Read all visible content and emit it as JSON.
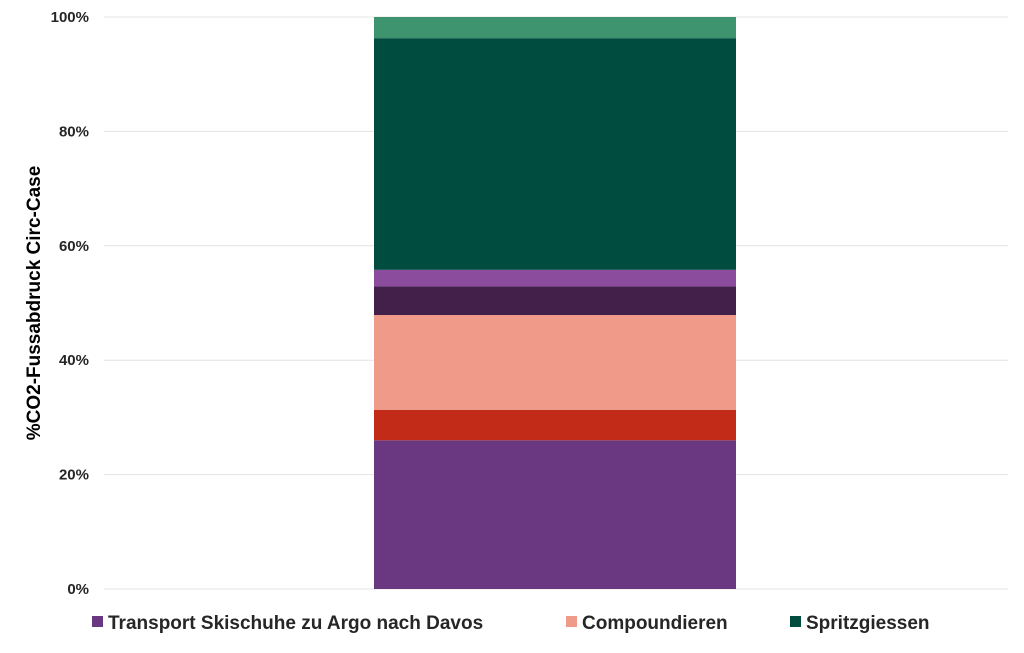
{
  "chart_data": {
    "type": "bar",
    "stacked": true,
    "ylabel": "%CO2-Fussabdruck Circ-Case",
    "ylim": [
      0,
      100
    ],
    "yticks": [
      "0%",
      "20%",
      "40%",
      "60%",
      "80%",
      "100%"
    ],
    "grid": true,
    "legend_placement": "bottom",
    "series": [
      {
        "value": 26.0,
        "color": "#6a3881"
      },
      {
        "value": 5.3,
        "color": "#c12b17"
      },
      {
        "value": 16.6,
        "color": "#f09a8a"
      },
      {
        "value": 5.0,
        "color": "#42204a"
      },
      {
        "value": 2.9,
        "color": "#8b4c9e"
      },
      {
        "value": 40.5,
        "color": "#004d40"
      },
      {
        "value": 3.7,
        "color": "#3f9470"
      }
    ],
    "legend": [
      {
        "label": "Transport Skischuhe zu Argo nach Davos",
        "color": "#6a3881"
      },
      {
        "label": "Compoundieren",
        "color": "#f09a8a"
      },
      {
        "label": "Spritzgiessen",
        "color": "#004d40"
      }
    ]
  }
}
